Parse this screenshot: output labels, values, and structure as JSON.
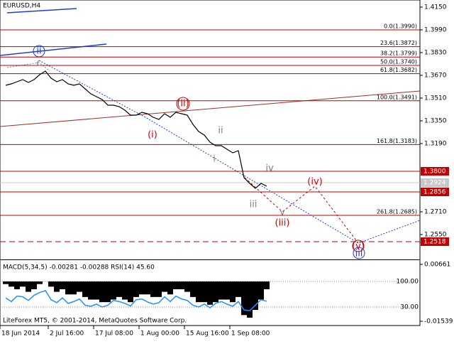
{
  "chart_data": [
    {
      "type": "line",
      "title": "EURUSD,H4",
      "color": "#000000",
      "x": [
        1,
        2,
        3,
        4,
        5,
        6,
        7,
        8,
        9,
        10,
        11,
        12,
        13,
        14,
        15,
        16,
        17,
        18,
        19,
        20,
        21,
        22,
        23,
        24,
        25,
        26,
        27,
        28,
        29,
        30,
        31,
        32,
        33,
        34,
        35,
        36,
        37,
        38,
        39,
        40,
        41,
        42,
        43,
        44,
        45,
        46,
        47
      ],
      "values": [
        1.36,
        1.361,
        1.3625,
        1.364,
        1.362,
        1.364,
        1.3675,
        1.37,
        1.365,
        1.3625,
        1.364,
        1.361,
        1.36,
        1.361,
        1.3575,
        1.354,
        1.352,
        1.35,
        1.346,
        1.346,
        1.345,
        1.3425,
        1.339,
        1.339,
        1.341,
        1.34,
        1.3375,
        1.336,
        1.34,
        1.3375,
        1.341,
        1.34,
        1.339,
        1.3325,
        1.3275,
        1.325,
        1.32,
        1.3175,
        1.3175,
        1.315,
        1.3125,
        1.314,
        1.295,
        1.291,
        1.2875,
        1.291,
        1.289
      ],
      "xlim": [
        0,
        74
      ],
      "xticks": [
        {
          "value": 0,
          "label": "18 Jun 2014"
        },
        {
          "value": 8.5,
          "label": "2 Jul 16:00"
        },
        {
          "value": 16.5,
          "label": "17 Jul 08:00"
        },
        {
          "value": 24.5,
          "label": "1 Aug 00:00"
        },
        {
          "value": 32.5,
          "label": "15 Aug 16:00"
        },
        {
          "value": 40.5,
          "label": "1 Sep 08:00"
        }
      ],
      "ylim": [
        1.2375,
        1.42
      ],
      "yticks": [
        {
          "value": 1.415,
          "label": "1.4150"
        },
        {
          "value": 1.399,
          "label": "1.3990"
        },
        {
          "value": 1.383,
          "label": "1.3830"
        },
        {
          "value": 1.367,
          "label": "1.3670"
        },
        {
          "value": 1.351,
          "label": "1.3510"
        },
        {
          "value": 1.335,
          "label": "1.3350"
        },
        {
          "value": 1.319,
          "label": "1.3190"
        },
        {
          "value": 1.271,
          "label": "1.2710"
        },
        {
          "value": 1.255,
          "label": "1.2550"
        }
      ],
      "fib_color": "#c00000",
      "fib_levels": [
        {
          "value": 1.399,
          "label": "0.0(1.3990)"
        },
        {
          "value": 1.3872,
          "label": "23.6(1.3872)"
        },
        {
          "value": 1.3799,
          "label": "38.2(1.3799)"
        },
        {
          "value": 1.374,
          "label": "50.0(1.3740)"
        },
        {
          "value": 1.3682,
          "label": "61.8(1.3682)"
        },
        {
          "value": 1.3491,
          "label": "100.0(1.3491)"
        },
        {
          "value": 1.3183,
          "label": "161.8(1.3183)"
        },
        {
          "value": 1.2685,
          "label": "261.8(1.2685)"
        }
      ],
      "price_labels": [
        "1.3800",
        "1.2924",
        "1.2856",
        "1.2518"
      ],
      "annotations": [
        "(i)",
        "(ii)",
        "(iii)",
        "(iv)",
        "(v)",
        "i",
        "ii",
        "iii",
        "iv",
        "v",
        "ii",
        "iii",
        "c"
      ],
      "copyright": "LiteForex MT5, © 2001-2014, MetaQuotes Software Corp."
    },
    {
      "type": "bar",
      "title": "MACD(5,34,5) -0.00281 -0.00288 RSI(14) 45.60",
      "series": [
        {
          "color": "#000000",
          "values": [
            -0.001,
            -0.002,
            -0.003,
            -0.002,
            -0.004,
            -0.003,
            -0.001,
            0.0,
            -0.002,
            -0.004,
            -0.003,
            -0.005,
            -0.005,
            -0.004,
            -0.006,
            -0.007,
            -0.007,
            -0.008,
            -0.008,
            -0.007,
            -0.006,
            -0.007,
            -0.008,
            -0.006,
            -0.005,
            -0.005,
            -0.006,
            -0.006,
            -0.004,
            -0.005,
            -0.003,
            -0.003,
            -0.004,
            -0.006,
            -0.008,
            -0.008,
            -0.009,
            -0.008,
            -0.007,
            -0.007,
            -0.008,
            -0.006,
            -0.013,
            -0.014,
            -0.011,
            -0.007,
            -0.003
          ]
        },
        {
          "color": "#1e90ff",
          "axis": "y2",
          "type": "line",
          "values": [
            55,
            45,
            60,
            58,
            48,
            62,
            70,
            75,
            50,
            42,
            55,
            40,
            45,
            52,
            35,
            32,
            38,
            30,
            35,
            48,
            45,
            40,
            33,
            50,
            52,
            44,
            38,
            42,
            58,
            45,
            60,
            52,
            48,
            35,
            30,
            38,
            28,
            40,
            45,
            38,
            32,
            45,
            22,
            20,
            35,
            50,
            45.6
          ]
        }
      ],
      "ylim": [
        -0.01704,
        0.00799
      ],
      "yticks": [
        0.00661,
        -0.01539
      ],
      "y2lim": [
        -20.6,
        156.4
      ],
      "y2ticks": [
        {
          "value": 100,
          "label": "100.00"
        },
        {
          "value": 30,
          "label": "30.00"
        }
      ]
    }
  ]
}
